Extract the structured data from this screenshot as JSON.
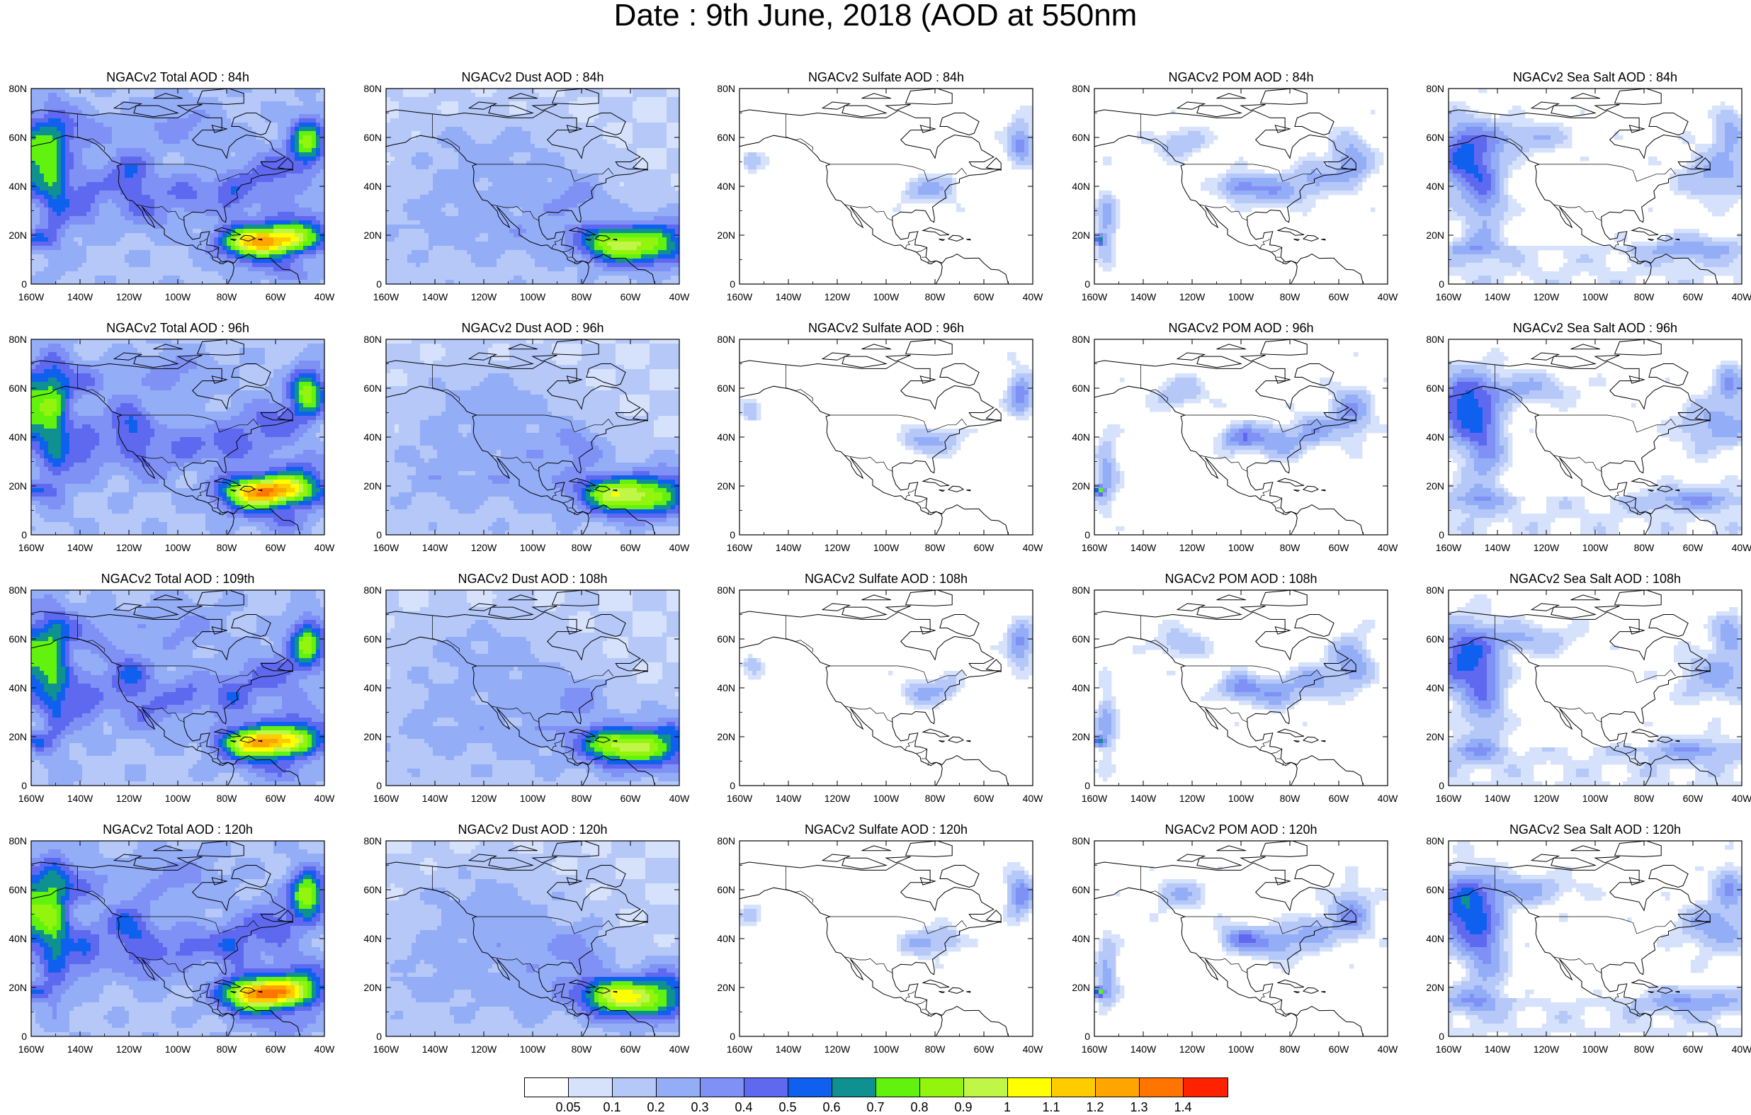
{
  "title": "Date : 9th June, 2018 (AOD at 550nm",
  "panels": [
    {
      "title": "NGACv2 Total AOD : 84h",
      "species": "total"
    },
    {
      "title": "NGACv2 Dust AOD : 84h",
      "species": "dust"
    },
    {
      "title": "NGACv2 Sulfate AOD : 84h",
      "species": "sulfate"
    },
    {
      "title": "NGACv2 POM AOD : 84h",
      "species": "pom"
    },
    {
      "title": "NGACv2 Sea Salt AOD : 84h",
      "species": "seasalt"
    },
    {
      "title": "NGACv2 Total AOD : 96h",
      "species": "total"
    },
    {
      "title": "NGACv2 Dust AOD : 96h",
      "species": "dust"
    },
    {
      "title": "NGACv2 Sulfate AOD : 96h",
      "species": "sulfate"
    },
    {
      "title": "NGACv2 POM AOD : 96h",
      "species": "pom"
    },
    {
      "title": "NGACv2 Sea Salt AOD : 96h",
      "species": "seasalt"
    },
    {
      "title": "NGACv2 Total AOD : 109th",
      "species": "total"
    },
    {
      "title": "NGACv2 Dust AOD : 108h",
      "species": "dust"
    },
    {
      "title": "NGACv2 Sulfate AOD : 108h",
      "species": "sulfate"
    },
    {
      "title": "NGACv2 POM AOD : 108h",
      "species": "pom"
    },
    {
      "title": "NGACv2 Sea Salt AOD : 108h",
      "species": "seasalt"
    },
    {
      "title": "NGACv2 Total AOD : 120h",
      "species": "total"
    },
    {
      "title": "NGACv2 Dust AOD : 120h",
      "species": "dust"
    },
    {
      "title": "NGACv2 Sulfate AOD : 120h",
      "species": "sulfate"
    },
    {
      "title": "NGACv2 POM AOD : 120h",
      "species": "pom"
    },
    {
      "title": "NGACv2 Sea Salt  AOD : 120h",
      "species": "seasalt"
    }
  ],
  "axes": {
    "lon_ticks": [
      "160W",
      "140W",
      "120W",
      "100W",
      "80W",
      "60W",
      "40W"
    ],
    "lat_ticks": [
      "80N",
      "60N",
      "40N",
      "20N",
      "0"
    ],
    "lon_range": [
      -160,
      -40
    ],
    "lat_range": [
      0,
      80
    ]
  },
  "colorbar": {
    "colors": [
      "#ffffff",
      "#d6e2fb",
      "#b5c8f8",
      "#94adf7",
      "#8091f5",
      "#5f69ef",
      "#1060ef",
      "#0e9190",
      "#61f20e",
      "#93f40e",
      "#c0f645",
      "#ffff00",
      "#ffcc00",
      "#ffa500",
      "#ff7500",
      "#ff2200"
    ],
    "labels": [
      "0.05",
      "0.1",
      "0.2",
      "0.3",
      "0.4",
      "0.5",
      "0.6",
      "0.7",
      "0.8",
      "0.9",
      "1",
      "1.1",
      "1.2",
      "1.3",
      "1.4"
    ]
  }
}
